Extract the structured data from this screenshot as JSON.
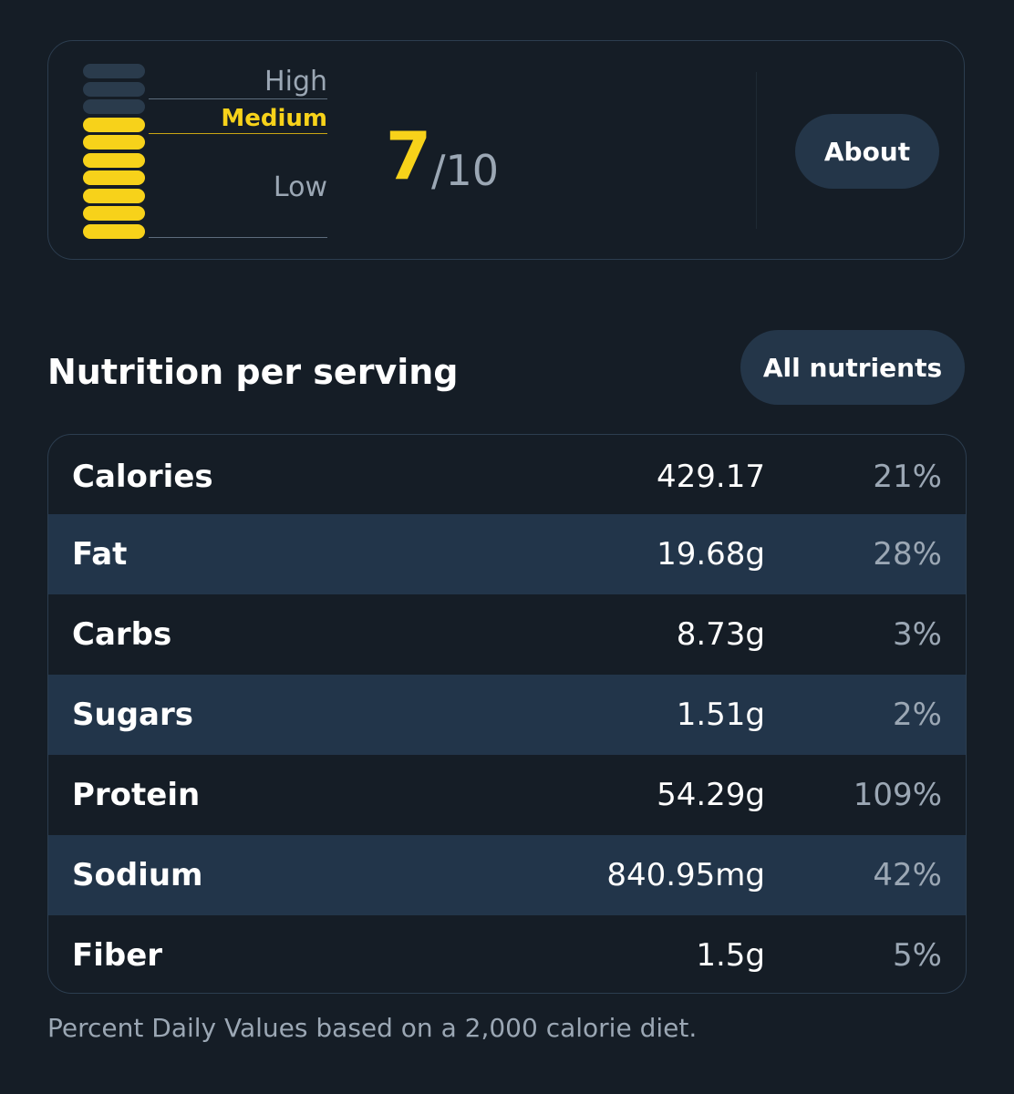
{
  "score": {
    "levels": {
      "high": "High",
      "medium": "Medium",
      "low": "Low"
    },
    "active_level": "Medium",
    "value": "7",
    "max_label": "/10",
    "meter": {
      "filled_segments": 7,
      "total_segments": 10,
      "color_on": "#f7d21a",
      "color_off": "#2a3b4c"
    },
    "about_label": "About"
  },
  "nutrition": {
    "title": "Nutrition per serving",
    "all_nutrients_label": "All nutrients",
    "rows": [
      {
        "name": "Calories",
        "amount": "429.17",
        "pct": "21%"
      },
      {
        "name": "Fat",
        "amount": "19.68g",
        "pct": "28%"
      },
      {
        "name": "Carbs",
        "amount": "8.73g",
        "pct": "3%"
      },
      {
        "name": "Sugars",
        "amount": "1.51g",
        "pct": "2%"
      },
      {
        "name": "Protein",
        "amount": "54.29g",
        "pct": "109%"
      },
      {
        "name": "Sodium",
        "amount": "840.95mg",
        "pct": "42%"
      },
      {
        "name": "Fiber",
        "amount": "1.5g",
        "pct": "5%"
      }
    ],
    "footnote": "Percent Daily Values based on a 2,000 calorie diet."
  },
  "colors": {
    "background": "#151d26",
    "accent": "#f7d21a",
    "row_alt": "#22354a",
    "muted_text": "#9ba7b4"
  }
}
